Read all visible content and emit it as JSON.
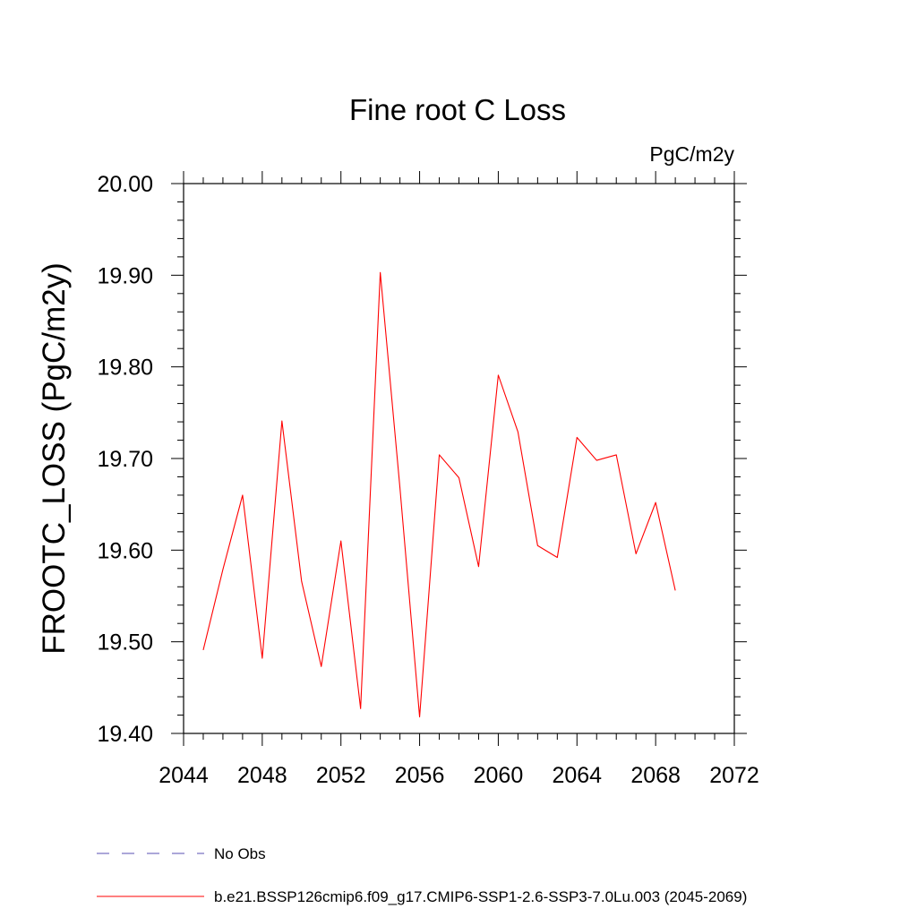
{
  "chart_data": {
    "type": "line",
    "title": "Fine root C Loss",
    "units_label": "PgC/m2y",
    "ylabel": "FROOTC_LOSS  (PgC/m2y)",
    "xlabel": "",
    "xlim": [
      2044,
      2072
    ],
    "ylim": [
      19.4,
      20.0
    ],
    "x_ticks": [
      "2044",
      "2048",
      "2052",
      "2056",
      "2060",
      "2064",
      "2068",
      "2072"
    ],
    "y_ticks": [
      "19.40",
      "19.50",
      "19.60",
      "19.70",
      "19.80",
      "19.90",
      "20.00"
    ],
    "grid": false,
    "legend_position": "bottom",
    "series": [
      {
        "name": "b.e21.BSSP126cmip6.f09_g17.CMIP6-SSP1-2.6-SSP3-7.0Lu.003 (2045-2069)",
        "color": "#ff0000",
        "dash": "solid",
        "x": [
          2045,
          2046,
          2047,
          2048,
          2049,
          2050,
          2051,
          2052,
          2053,
          2054,
          2055,
          2056,
          2057,
          2058,
          2059,
          2060,
          2061,
          2062,
          2063,
          2064,
          2065,
          2066,
          2067,
          2068,
          2069
        ],
        "values": [
          19.491,
          19.579,
          19.66,
          19.482,
          19.741,
          19.566,
          19.473,
          19.61,
          19.427,
          19.903,
          19.668,
          19.418,
          19.704,
          19.679,
          19.582,
          19.791,
          19.729,
          19.605,
          19.592,
          19.723,
          19.698,
          19.704,
          19.596,
          19.652,
          19.556
        ]
      }
    ],
    "legend": [
      {
        "label": "No Obs",
        "color": "#5a4fb3",
        "dash": "dashed"
      },
      {
        "label": "b.e21.BSSP126cmip6.f09_g17.CMIP6-SSP1-2.6-SSP3-7.0Lu.003 (2045-2069)",
        "color": "#ff0000",
        "dash": "solid"
      }
    ]
  }
}
